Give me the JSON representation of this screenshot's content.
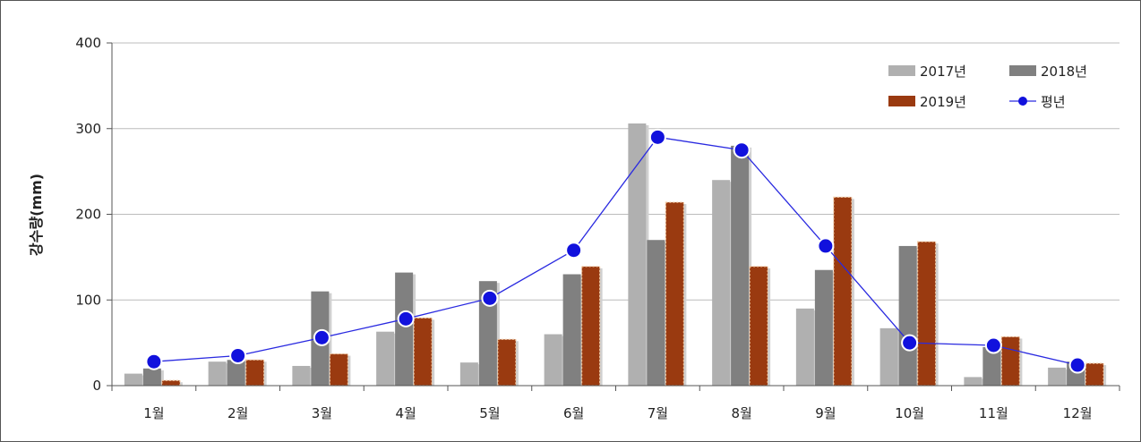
{
  "chart_data": {
    "type": "bar",
    "title": "",
    "xlabel": "",
    "ylabel": "강수량(mm)",
    "ylim": [
      0,
      400
    ],
    "yticks": [
      0,
      100,
      200,
      300,
      400
    ],
    "grid": true,
    "legend_position": "top-right",
    "categories": [
      "1월",
      "2월",
      "3월",
      "4월",
      "5월",
      "6월",
      "7월",
      "8월",
      "9월",
      "10월",
      "11월",
      "12월"
    ],
    "series": [
      {
        "name": "2017년",
        "type": "bar",
        "color": "#b0b0b0",
        "values": [
          14,
          28,
          23,
          63,
          27,
          60,
          306,
          240,
          90,
          67,
          10,
          21
        ]
      },
      {
        "name": "2018년",
        "type": "bar",
        "color": "#808080",
        "values": [
          20,
          30,
          110,
          132,
          122,
          130,
          170,
          280,
          135,
          163,
          45,
          28
        ]
      },
      {
        "name": "2019년",
        "type": "bar",
        "color": "#9a3a10",
        "values": [
          6,
          30,
          37,
          79,
          54,
          139,
          214,
          139,
          220,
          168,
          57,
          26
        ]
      },
      {
        "name": "평년",
        "type": "line",
        "color": "#1010dd",
        "values": [
          28,
          35,
          56,
          78,
          102,
          158,
          290,
          275,
          163,
          50,
          47,
          24
        ]
      }
    ]
  }
}
